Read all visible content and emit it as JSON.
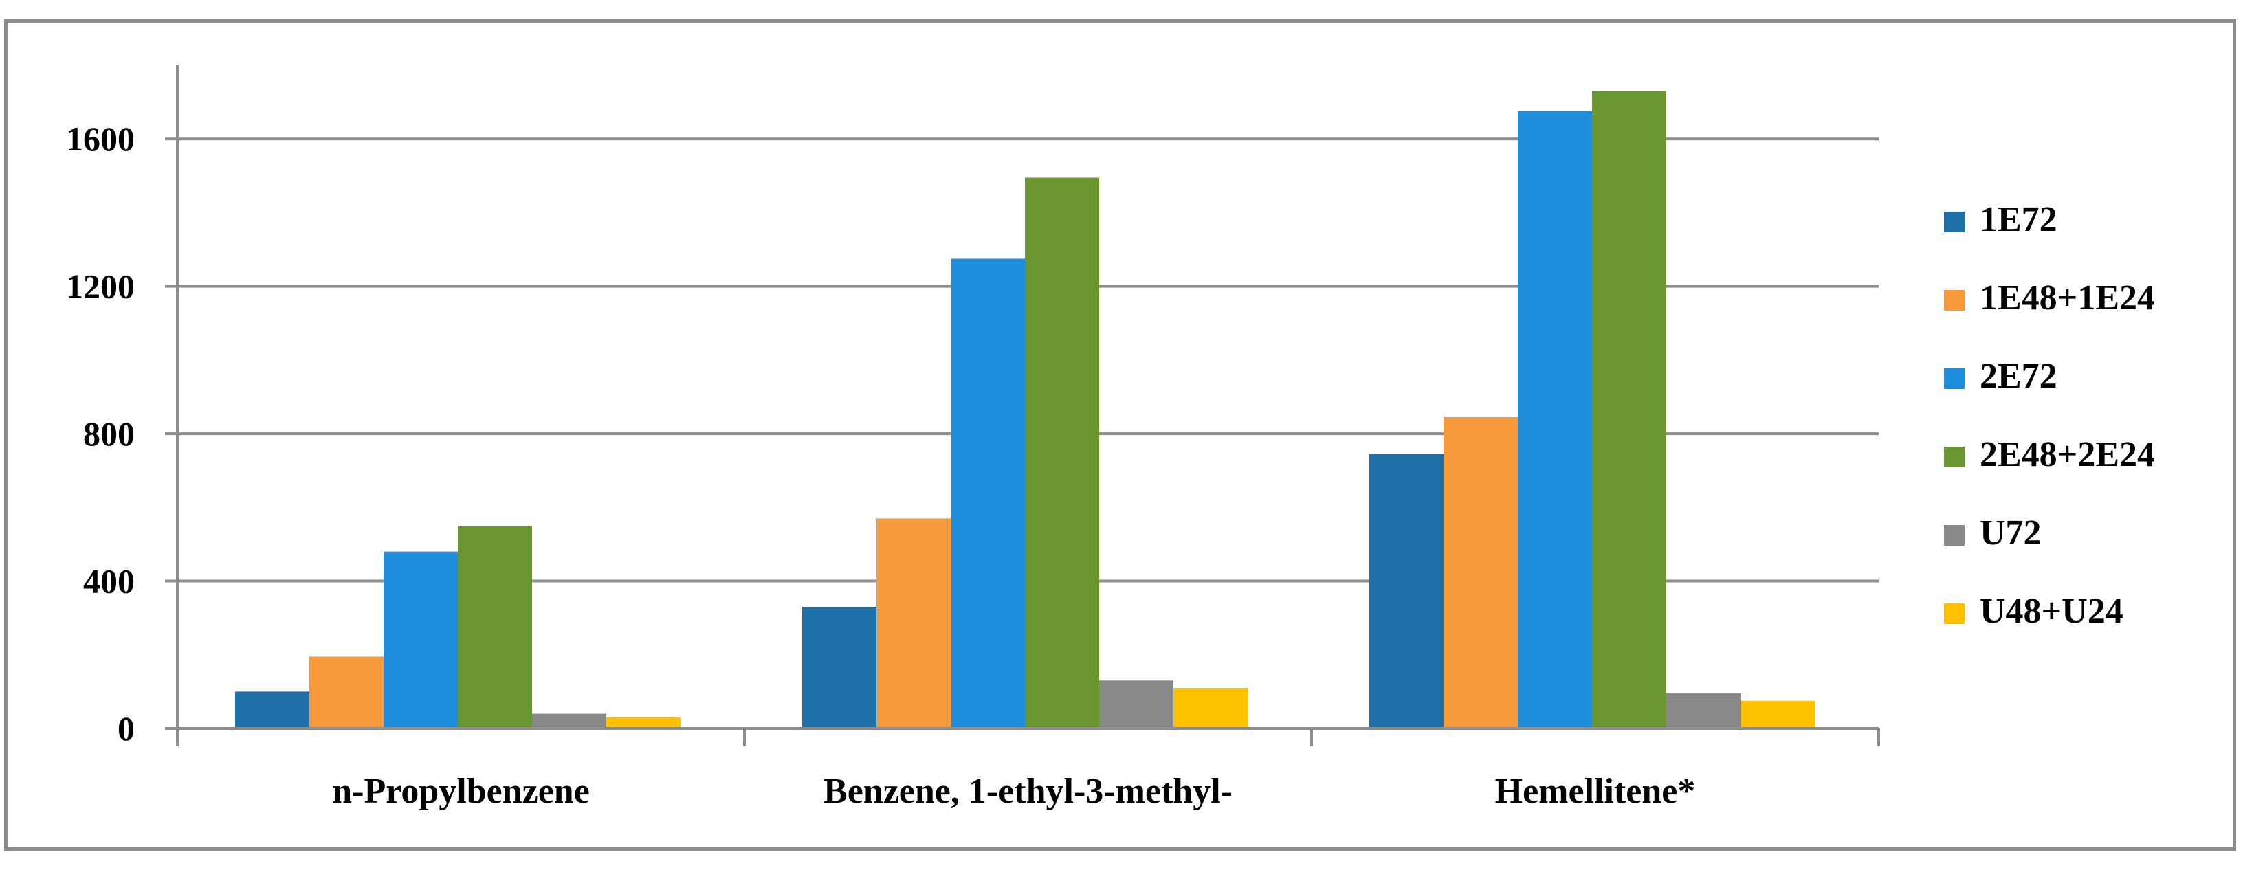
{
  "chart_data": {
    "type": "bar",
    "categories": [
      "n-Propylbenzene",
      "Benzene, 1-ethyl-3-methyl-",
      "Hemellitene*"
    ],
    "series": [
      {
        "name": "1E72",
        "color": "#1f6fa8",
        "values": [
          100,
          330,
          745
        ]
      },
      {
        "name": "1E48+1E24",
        "color": "#f79a3b",
        "values": [
          195,
          570,
          845
        ]
      },
      {
        "name": "2E72",
        "color": "#1e8ddb",
        "values": [
          480,
          1275,
          1675
        ]
      },
      {
        "name": "2E48+2E24",
        "color": "#6a9631",
        "values": [
          550,
          1495,
          1730
        ]
      },
      {
        "name": "U72",
        "color": "#888888",
        "values": [
          40,
          130,
          95
        ]
      },
      {
        "name": "U48+U24",
        "color": "#ffc000",
        "values": [
          30,
          110,
          75
        ]
      }
    ],
    "y_ticks": [
      0,
      400,
      800,
      1200,
      1600
    ],
    "ylim": [
      0,
      1800
    ],
    "grid": true,
    "legend_position": "right"
  }
}
